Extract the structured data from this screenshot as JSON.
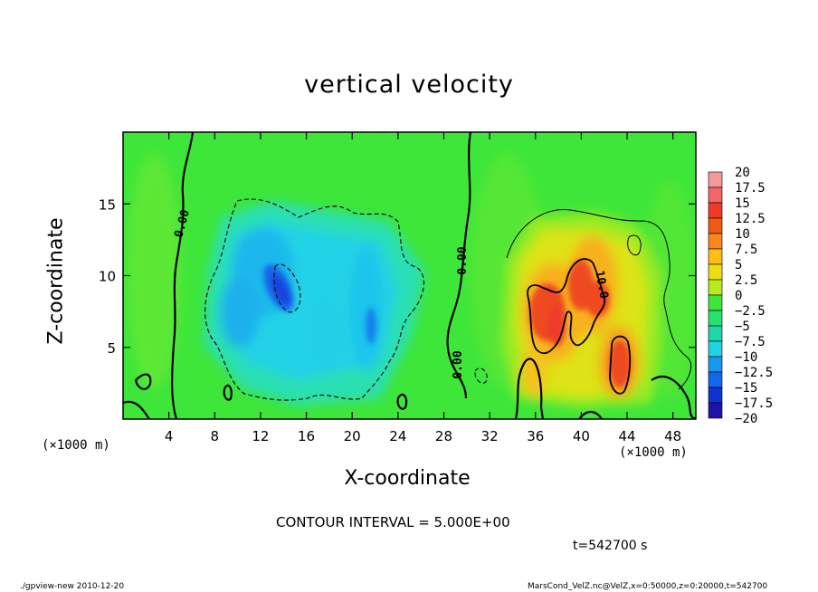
{
  "chart_data": {
    "type": "heatmap",
    "title": "vertical velocity",
    "xlabel": "X-coordinate",
    "ylabel": "Z-coordinate",
    "x_unit_label": "(×1000 m)",
    "xlim": [
      0,
      50
    ],
    "ylim": [
      0,
      20
    ],
    "x_ticks": [
      4,
      8,
      12,
      16,
      20,
      24,
      28,
      32,
      36,
      40,
      44,
      48
    ],
    "y_ticks": [
      5,
      10,
      15
    ],
    "colorbar_levels": [
      "20",
      "17.5",
      "15",
      "12.5",
      "10",
      "7.5",
      "5",
      "2.5",
      "0",
      "−2.5",
      "−5",
      "−7.5",
      "−10",
      "−12.5",
      "−15",
      "−17.5",
      "−20"
    ],
    "colorbar_colors": [
      "#f29a9a",
      "#f26666",
      "#ef3a2a",
      "#f15a12",
      "#f88818",
      "#fbbf16",
      "#ecdf10",
      "#b6ec1c",
      "#3ee63a",
      "#28e06e",
      "#1ed7ab",
      "#20d2e6",
      "#1499ee",
      "#1466ea",
      "#0f32d4",
      "#1f12a8",
      "#5a1bb2"
    ],
    "contour_labels": [
      "0.00",
      "0.00",
      "0.00",
      "10.0"
    ],
    "features": [
      {
        "kind": "downdraft",
        "x": 13.5,
        "z": 9.2,
        "value": -12
      },
      {
        "kind": "downdraft",
        "x": 21.5,
        "z": 8,
        "value": -8
      },
      {
        "kind": "updraft",
        "x": 37,
        "z": 7,
        "value": 15
      },
      {
        "kind": "updraft",
        "x": 40,
        "z": 9,
        "value": 14
      },
      {
        "kind": "updraft",
        "x": 43,
        "z": 4,
        "value": 14
      }
    ],
    "contour_interval": "CONTOUR INTERVAL = 5.000E+00",
    "time": "t=542700 s"
  },
  "footer": {
    "left": "./gpview-new  2010-12-20",
    "right": "MarsCond_VelZ.nc@VelZ,x=0:50000,z=0:20000,t=542700"
  }
}
